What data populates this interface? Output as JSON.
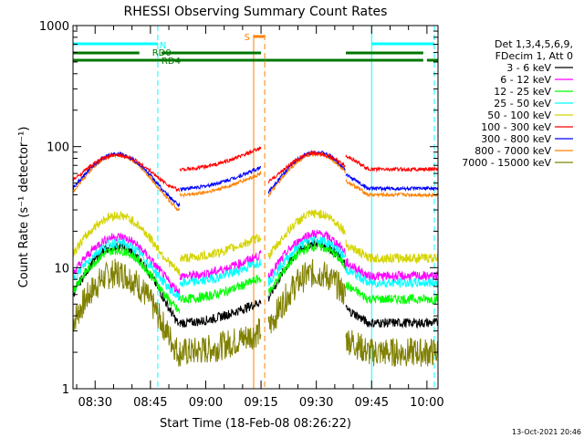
{
  "colors": {
    "background": "#ffffff",
    "axis": "#000000",
    "channels": [
      "#000000",
      "#ff00ff",
      "#00ff00",
      "#00ffff",
      "#d4d400",
      "#ff0000",
      "#0000ff",
      "#ff8000",
      "#808000"
    ],
    "night_marker": "#00ffff",
    "saa_marker": "#ff8000",
    "rd0": "#007700",
    "rd4": "#007700"
  },
  "chart_data": {
    "type": "line",
    "title": "RHESSI Observing Summary Count Rates",
    "xlabel": "Start Time (18-Feb-08 08:26:22)",
    "ylabel": "Count Rate (s⁻¹ detector⁻¹)",
    "yscale": "log",
    "ylim": [
      1,
      1000
    ],
    "xlim": [
      "08:24",
      "10:03"
    ],
    "x_ticks": [
      "08:30",
      "08:45",
      "09:00",
      "09:15",
      "09:30",
      "09:45",
      "10:00"
    ],
    "y_ticks": [
      "1",
      "10",
      "100",
      "1000"
    ],
    "legend_position": "right",
    "legend_header": [
      "Det 1,3,4,5,6,9,",
      "FDecim 1, Att 0"
    ],
    "series": [
      {
        "name": "3 - 6 keV",
        "peak1": 15,
        "base": 3.5,
        "peak2": 16
      },
      {
        "name": "6 - 12 keV",
        "peak1": 18,
        "base": 8.5,
        "peak2": 19
      },
      {
        "name": "12 - 25 keV",
        "peak1": 14,
        "base": 5.5,
        "peak2": 15
      },
      {
        "name": "25 - 50 keV",
        "peak1": 16,
        "base": 7.5,
        "peak2": 17
      },
      {
        "name": "50 - 100 keV",
        "peak1": 27,
        "base": 12,
        "peak2": 28
      },
      {
        "name": "100 - 300 keV",
        "peak1": 85,
        "base": 65,
        "peak2": 88
      },
      {
        "name": "300 - 800 keV",
        "peak1": 87,
        "base": 45,
        "peak2": 90
      },
      {
        "name": "800 - 7000 keV",
        "peak1": 85,
        "base": 40,
        "peak2": 87
      },
      {
        "name": "7000 - 15000 keV",
        "peak1": 9,
        "base": 2,
        "peak2": 9
      }
    ],
    "annotations": {
      "night_label": "N",
      "saa_label": "S",
      "rd0_label": "RD0",
      "rd4_label": "RD4",
      "night_intervals": [
        [
          "08:24",
          "08:47"
        ],
        [
          "09:45",
          "10:02"
        ]
      ],
      "saa_interval": [
        "09:13",
        "09:16"
      ],
      "rd0_segments": [
        [
          "08:24",
          "08:42"
        ],
        [
          "08:48",
          "09:15"
        ],
        [
          "09:38",
          "09:59"
        ]
      ],
      "rd4_segments": [
        [
          "08:24",
          "09:16"
        ],
        [
          "09:16",
          "09:38"
        ],
        [
          "09:38",
          "09:59"
        ],
        [
          "10:00",
          "10:03"
        ]
      ]
    },
    "timestamp": "13-Oct-2021 20:46"
  }
}
